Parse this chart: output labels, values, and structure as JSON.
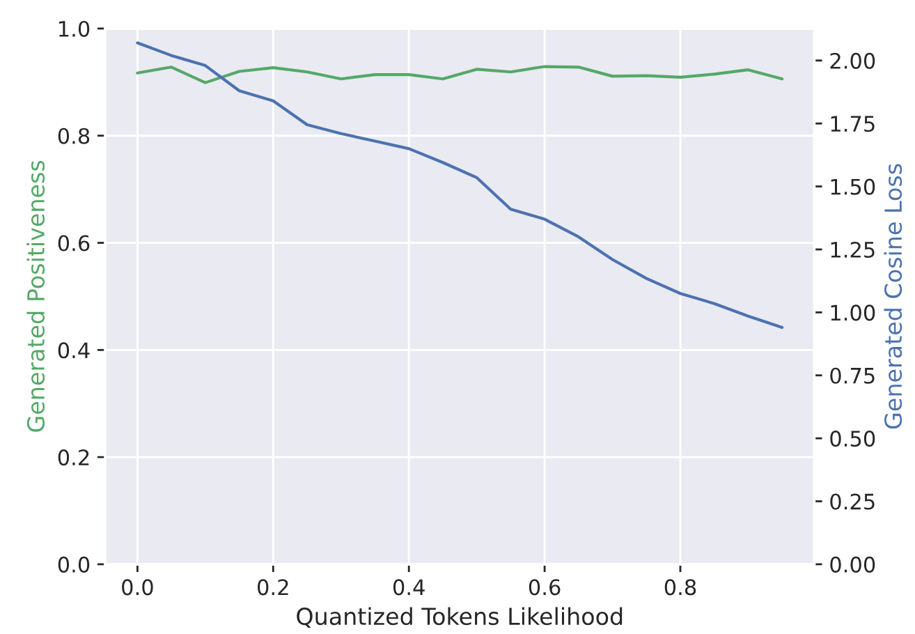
{
  "chart_data": {
    "type": "line",
    "xlabel": "Quantized Tokens Likelihood",
    "ylabel": "Generated Positiveness",
    "y2label": "Generated Cosine Loss",
    "x": [
      0,
      0.05,
      0.1,
      0.15,
      0.2,
      0.25,
      0.3,
      0.35,
      0.4,
      0.45,
      0.5,
      0.55,
      0.6,
      0.65,
      0.7,
      0.75,
      0.8,
      0.85,
      0.9,
      0.95
    ],
    "series": [
      {
        "color": "#55a868",
        "values": [
          0.917,
          0.928,
          0.899,
          0.92,
          0.927,
          0.919,
          0.906,
          0.914,
          0.914,
          0.906,
          0.924,
          0.919,
          0.929,
          0.928,
          0.911,
          0.912,
          0.909,
          0.915,
          0.923,
          0.906
        ]
      },
      {
        "color": "#4c72b0",
        "axis": "y2",
        "values": [
          2.07,
          2.02,
          1.98,
          1.88,
          1.84,
          1.745,
          1.71,
          1.68,
          1.65,
          1.595,
          1.535,
          1.41,
          1.37,
          1.3,
          1.21,
          1.135,
          1.075,
          1.035,
          0.985,
          0.94
        ]
      }
    ],
    "xlim": [
      -0.0475,
      0.9975
    ],
    "xticks": [
      {
        "value": 0,
        "label": "0.0"
      },
      0.2,
      0.4,
      0.6,
      0.8
    ],
    "ylim": [
      0,
      1
    ],
    "yticks": [
      {
        "value": 0,
        "label": "0.0"
      },
      0.2,
      0.4,
      0.6,
      0.8,
      {
        "value": 1,
        "label": "1.0"
      }
    ],
    "y2lim": [
      0,
      2.127
    ],
    "y2ticks": [
      {
        "value": 0,
        "label": "0.00"
      },
      0.25,
      {
        "value": 0.5,
        "label": "0.50"
      },
      0.75,
      {
        "value": 1,
        "label": "1.00"
      },
      1.25,
      {
        "value": 1.5,
        "label": "1.50"
      },
      1.75,
      {
        "value": 2,
        "label": "2.00"
      }
    ],
    "grid": true
  }
}
